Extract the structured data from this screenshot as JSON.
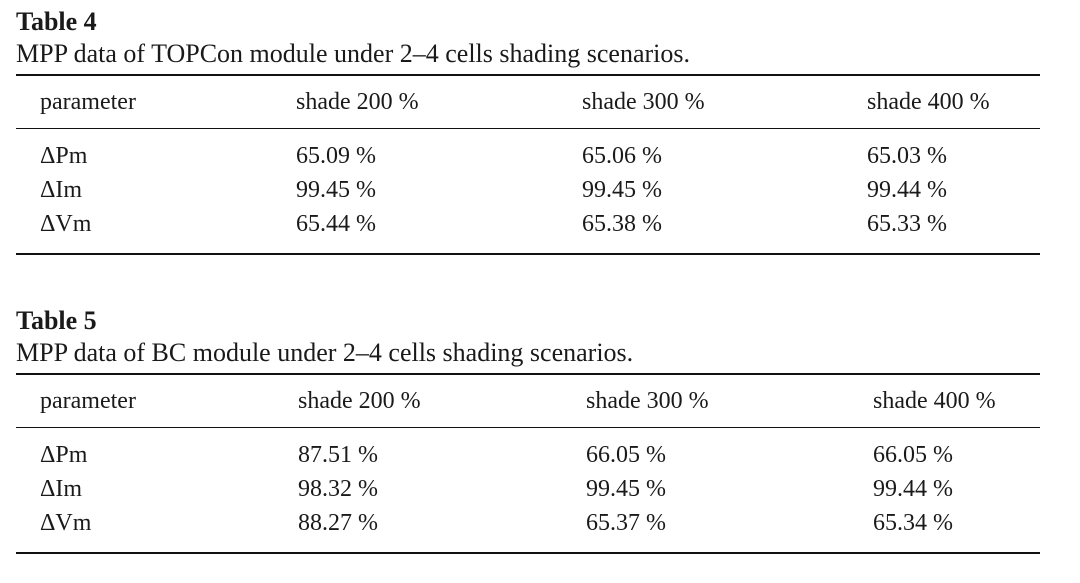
{
  "tables": [
    {
      "label": "Table 4",
      "caption": "MPP data of TOPCon module under 2–4 cells shading scenarios.",
      "headers": [
        "parameter",
        "shade 200 %",
        "shade 300 %",
        "shade 400 %"
      ],
      "rows": [
        [
          "ΔPm",
          "65.09 %",
          "65.06 %",
          "65.03 %"
        ],
        [
          "ΔIm",
          "99.45 %",
          "99.45 %",
          "99.44 %"
        ],
        [
          "ΔVm",
          "65.44 %",
          "65.38 %",
          "65.33 %"
        ]
      ]
    },
    {
      "label": "Table 5",
      "caption": "MPP data of BC module under 2–4 cells shading scenarios.",
      "headers": [
        "parameter",
        "shade 200 %",
        "shade 300 %",
        "shade 400 %"
      ],
      "rows": [
        [
          "ΔPm",
          "87.51 %",
          "66.05 %",
          "66.05 %"
        ],
        [
          "ΔIm",
          "98.32 %",
          "99.45 %",
          "99.44 %"
        ],
        [
          "ΔVm",
          "88.27 %",
          "65.37 %",
          "65.34 %"
        ]
      ]
    }
  ]
}
